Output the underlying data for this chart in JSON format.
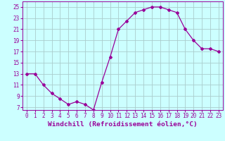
{
  "x": [
    0,
    1,
    2,
    3,
    4,
    5,
    6,
    7,
    8,
    9,
    10,
    11,
    12,
    13,
    14,
    15,
    16,
    17,
    18,
    19,
    20,
    21,
    22,
    23
  ],
  "y": [
    13,
    13,
    11,
    9.5,
    8.5,
    7.5,
    8,
    7.5,
    6.5,
    11.5,
    16,
    21,
    22.5,
    24,
    24.5,
    25,
    25,
    24.5,
    24,
    21,
    19,
    17.5,
    17.5,
    17
  ],
  "line_color": "#990099",
  "marker": "D",
  "marker_size": 2.0,
  "bg_color": "#ccffff",
  "grid_color": "#aacccc",
  "xlabel": "Windchill (Refroidissement éolien,°C)",
  "xlabel_color": "#990099",
  "ylim": [
    6.5,
    26
  ],
  "yticks": [
    7,
    9,
    11,
    13,
    15,
    17,
    19,
    21,
    23,
    25
  ],
  "xlim": [
    -0.5,
    23.5
  ],
  "xticks": [
    0,
    1,
    2,
    3,
    4,
    5,
    6,
    7,
    8,
    9,
    10,
    11,
    12,
    13,
    14,
    15,
    16,
    17,
    18,
    19,
    20,
    21,
    22,
    23
  ],
  "tick_color": "#990099",
  "tick_fontsize": 5.5,
  "xlabel_fontsize": 6.8
}
